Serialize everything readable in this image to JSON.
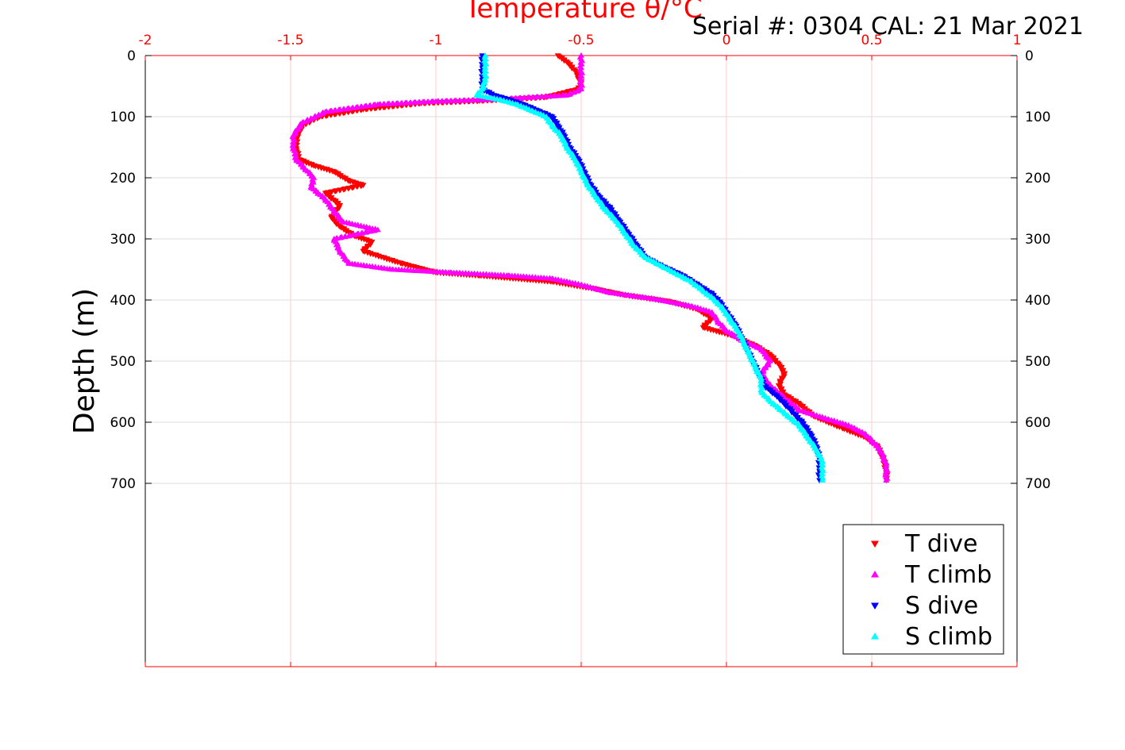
{
  "chart_data": {
    "type": "scatter",
    "title": "Temperature θ/°C",
    "annotation": "Serial #: 0304  CAL: 21 Mar 2021",
    "ylabel": "Depth (m)",
    "xlabel": "",
    "xlim": [
      -2,
      1
    ],
    "ylim": [
      1000,
      0
    ],
    "x_ticks": [
      "-2",
      "-1.5",
      "-1",
      "-0.5",
      "0",
      "0.5",
      "1"
    ],
    "y_ticks": [
      "0",
      "100",
      "200",
      "300",
      "400",
      "500",
      "600",
      "700"
    ],
    "grid": true,
    "legend_position": "bottom-right",
    "colors": {
      "title": "#ff0000",
      "x_axis": "#ff0000",
      "grid": "#ffc8d2"
    },
    "series": [
      {
        "name": "T dive",
        "marker": "triangle-down",
        "color": "#ff0000",
        "points": [
          [
            -0.58,
            0
          ],
          [
            -0.55,
            10
          ],
          [
            -0.52,
            25
          ],
          [
            -0.5,
            45
          ],
          [
            -0.51,
            55
          ],
          [
            -0.62,
            68
          ],
          [
            -0.85,
            74
          ],
          [
            -1.05,
            78
          ],
          [
            -1.25,
            88
          ],
          [
            -1.4,
            100
          ],
          [
            -1.46,
            115
          ],
          [
            -1.48,
            135
          ],
          [
            -1.48,
            155
          ],
          [
            -1.47,
            170
          ],
          [
            -1.42,
            180
          ],
          [
            -1.35,
            190
          ],
          [
            -1.3,
            205
          ],
          [
            -1.25,
            212
          ],
          [
            -1.38,
            225
          ],
          [
            -1.33,
            245
          ],
          [
            -1.36,
            265
          ],
          [
            -1.33,
            280
          ],
          [
            -1.28,
            295
          ],
          [
            -1.22,
            305
          ],
          [
            -1.25,
            320
          ],
          [
            -1.12,
            340
          ],
          [
            -1.0,
            355
          ],
          [
            -0.85,
            360
          ],
          [
            -0.6,
            370
          ],
          [
            -0.45,
            382
          ],
          [
            -0.35,
            392
          ],
          [
            -0.2,
            402
          ],
          [
            -0.1,
            415
          ],
          [
            -0.05,
            430
          ],
          [
            -0.08,
            445
          ],
          [
            0.02,
            458
          ],
          [
            0.1,
            475
          ],
          [
            0.15,
            490
          ],
          [
            0.18,
            505
          ],
          [
            0.2,
            520
          ],
          [
            0.18,
            540
          ],
          [
            0.2,
            555
          ],
          [
            0.25,
            570
          ],
          [
            0.3,
            590
          ],
          [
            0.4,
            610
          ],
          [
            0.48,
            625
          ],
          [
            0.52,
            640
          ],
          [
            0.54,
            660
          ],
          [
            0.55,
            680
          ],
          [
            0.55,
            695
          ]
        ]
      },
      {
        "name": "T climb",
        "marker": "triangle-up",
        "color": "#ff00ff",
        "points": [
          [
            -0.5,
            0
          ],
          [
            -0.5,
            20
          ],
          [
            -0.5,
            40
          ],
          [
            -0.5,
            55
          ],
          [
            -0.55,
            65
          ],
          [
            -0.8,
            72
          ],
          [
            -1.0,
            75
          ],
          [
            -1.2,
            80
          ],
          [
            -1.38,
            92
          ],
          [
            -1.46,
            110
          ],
          [
            -1.49,
            130
          ],
          [
            -1.49,
            150
          ],
          [
            -1.48,
            170
          ],
          [
            -1.45,
            185
          ],
          [
            -1.42,
            200
          ],
          [
            -1.43,
            215
          ],
          [
            -1.38,
            235
          ],
          [
            -1.35,
            255
          ],
          [
            -1.32,
            272
          ],
          [
            -1.2,
            285
          ],
          [
            -1.35,
            300
          ],
          [
            -1.33,
            320
          ],
          [
            -1.3,
            340
          ],
          [
            -1.15,
            350
          ],
          [
            -0.95,
            355
          ],
          [
            -0.75,
            360
          ],
          [
            -0.6,
            365
          ],
          [
            -0.5,
            375
          ],
          [
            -0.4,
            388
          ],
          [
            -0.25,
            398
          ],
          [
            -0.12,
            410
          ],
          [
            -0.05,
            420
          ],
          [
            -0.03,
            435
          ],
          [
            0.0,
            450
          ],
          [
            0.05,
            465
          ],
          [
            0.12,
            480
          ],
          [
            0.15,
            500
          ],
          [
            0.12,
            520
          ],
          [
            0.15,
            540
          ],
          [
            0.2,
            560
          ],
          [
            0.25,
            580
          ],
          [
            0.35,
            595
          ],
          [
            0.42,
            605
          ],
          [
            0.48,
            620
          ],
          [
            0.53,
            645
          ],
          [
            0.55,
            670
          ],
          [
            0.55,
            695
          ]
        ]
      },
      {
        "name": "S dive",
        "marker": "triangle-down",
        "color": "#0000ff",
        "points": [
          [
            -0.84,
            0
          ],
          [
            -0.84,
            20
          ],
          [
            -0.84,
            40
          ],
          [
            -0.84,
            55
          ],
          [
            -0.8,
            65
          ],
          [
            -0.75,
            72
          ],
          [
            -0.7,
            80
          ],
          [
            -0.65,
            90
          ],
          [
            -0.6,
            100
          ],
          [
            -0.58,
            115
          ],
          [
            -0.56,
            130
          ],
          [
            -0.54,
            150
          ],
          [
            -0.51,
            170
          ],
          [
            -0.49,
            190
          ],
          [
            -0.47,
            210
          ],
          [
            -0.44,
            230
          ],
          [
            -0.4,
            250
          ],
          [
            -0.37,
            270
          ],
          [
            -0.34,
            290
          ],
          [
            -0.31,
            310
          ],
          [
            -0.28,
            330
          ],
          [
            -0.22,
            345
          ],
          [
            -0.15,
            360
          ],
          [
            -0.1,
            375
          ],
          [
            -0.05,
            390
          ],
          [
            -0.02,
            405
          ],
          [
            0.0,
            420
          ],
          [
            0.03,
            440
          ],
          [
            0.05,
            460
          ],
          [
            0.07,
            480
          ],
          [
            0.09,
            500
          ],
          [
            0.11,
            520
          ],
          [
            0.13,
            540
          ],
          [
            0.18,
            560
          ],
          [
            0.22,
            580
          ],
          [
            0.26,
            600
          ],
          [
            0.29,
            620
          ],
          [
            0.31,
            640
          ],
          [
            0.32,
            660
          ],
          [
            0.32,
            680
          ],
          [
            0.32,
            695
          ]
        ]
      },
      {
        "name": "S climb",
        "marker": "triangle-up",
        "color": "#00ffff",
        "points": [
          [
            -0.83,
            0
          ],
          [
            -0.83,
            20
          ],
          [
            -0.83,
            40
          ],
          [
            -0.84,
            55
          ],
          [
            -0.86,
            65
          ],
          [
            -0.78,
            72
          ],
          [
            -0.72,
            80
          ],
          [
            -0.67,
            90
          ],
          [
            -0.62,
            100
          ],
          [
            -0.6,
            115
          ],
          [
            -0.57,
            130
          ],
          [
            -0.55,
            150
          ],
          [
            -0.52,
            170
          ],
          [
            -0.5,
            190
          ],
          [
            -0.48,
            210
          ],
          [
            -0.45,
            230
          ],
          [
            -0.42,
            250
          ],
          [
            -0.38,
            270
          ],
          [
            -0.35,
            290
          ],
          [
            -0.32,
            310
          ],
          [
            -0.28,
            330
          ],
          [
            -0.18,
            355
          ],
          [
            -0.12,
            370
          ],
          [
            -0.08,
            385
          ],
          [
            -0.04,
            400
          ],
          [
            -0.01,
            415
          ],
          [
            0.01,
            430
          ],
          [
            0.04,
            450
          ],
          [
            0.06,
            470
          ],
          [
            0.08,
            490
          ],
          [
            0.1,
            510
          ],
          [
            0.12,
            530
          ],
          [
            0.12,
            550
          ],
          [
            0.15,
            565
          ],
          [
            0.2,
            585
          ],
          [
            0.25,
            605
          ],
          [
            0.28,
            625
          ],
          [
            0.31,
            645
          ],
          [
            0.33,
            665
          ],
          [
            0.33,
            685
          ],
          [
            0.33,
            695
          ]
        ]
      }
    ]
  }
}
